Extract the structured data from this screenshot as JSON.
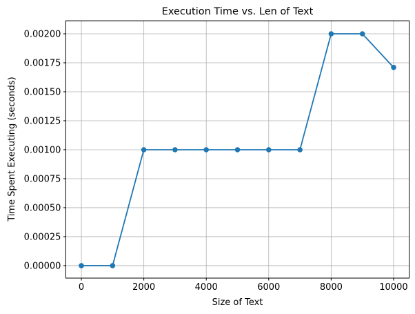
{
  "chart_data": {
    "type": "line",
    "title": "Execution Time vs. Len of Text",
    "xlabel": "Size of Text",
    "ylabel": "Time Spent Executing (seconds)",
    "x": [
      0,
      1000,
      2000,
      3000,
      4000,
      5000,
      6000,
      7000,
      8000,
      9000,
      10000
    ],
    "y": [
      0.0,
      0.0,
      0.001,
      0.001,
      0.001,
      0.001,
      0.001,
      0.001,
      0.002,
      0.002,
      0.00171
    ],
    "x_ticks": [
      0,
      2000,
      4000,
      6000,
      8000,
      10000
    ],
    "x_tick_labels": [
      "0",
      "2000",
      "4000",
      "6000",
      "8000",
      "10000"
    ],
    "y_ticks": [
      0.0,
      0.00025,
      0.0005,
      0.00075,
      0.001,
      0.00125,
      0.0015,
      0.00175,
      0.002
    ],
    "y_tick_labels": [
      "0.00000",
      "0.00025",
      "0.00050",
      "0.00075",
      "0.00100",
      "0.00125",
      "0.00150",
      "0.00175",
      "0.00200"
    ],
    "xlim": [
      -500,
      10500
    ],
    "ylim": [
      -0.0001075,
      0.0021125
    ],
    "grid": true,
    "legend": null,
    "marker": "circle",
    "line_color": "#1f77b4",
    "grid_color": "#b0b0b0",
    "axes_edge_color": "#000000",
    "background_color": "#ffffff"
  }
}
